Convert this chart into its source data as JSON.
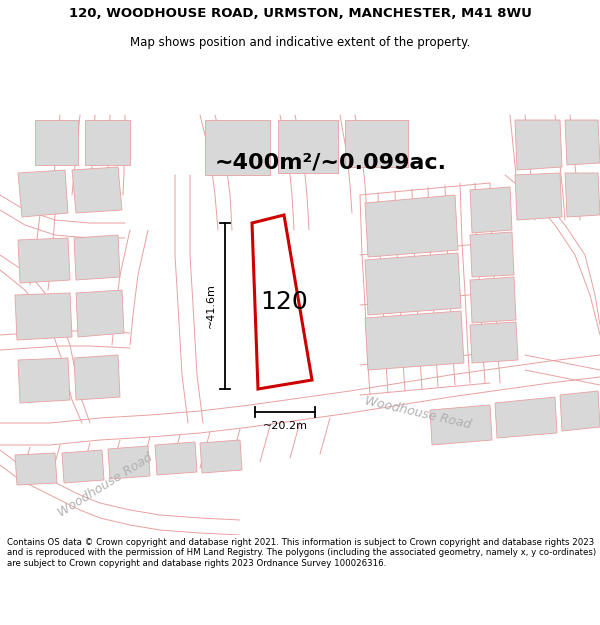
{
  "title": "120, WOODHOUSE ROAD, URMSTON, MANCHESTER, M41 8WU",
  "subtitle": "Map shows position and indicative extent of the property.",
  "area_text": "~400m²/~0.099ac.",
  "label_120": "120",
  "dim_width": "~20.2m",
  "dim_height": "~41.6m",
  "road_label1": "Woodhouse Road",
  "road_label2": "Woodhouse Road",
  "footer": "Contains OS data © Crown copyright and database right 2021. This information is subject to Crown copyright and database rights 2023 and is reproduced with the permission of HM Land Registry. The polygons (including the associated geometry, namely x, y co-ordinates) are subject to Crown copyright and database rights 2023 Ordnance Survey 100026316.",
  "bg_color": "#ffffff",
  "map_bg": "#f0f0f0",
  "building_fill": "#d8d8d8",
  "building_edge": "#e8a0a0",
  "road_color": "#e8a0a0",
  "highlight_fill": "#ffffff",
  "highlight_edge": "#cc0000",
  "title_fontsize": 9.5,
  "subtitle_fontsize": 8.5,
  "area_fontsize": 16,
  "label_fontsize": 18,
  "dim_fontsize": 8,
  "road_label_fontsize": 9,
  "footer_fontsize": 6.2
}
